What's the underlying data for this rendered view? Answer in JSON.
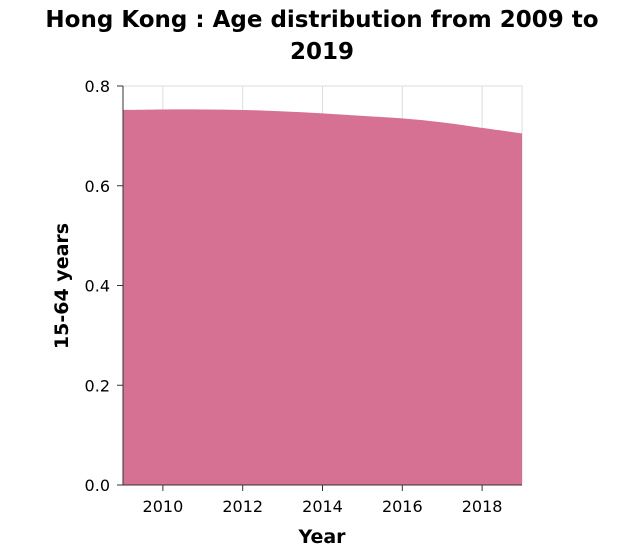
{
  "chart_data": {
    "type": "area",
    "title_lines": [
      "Hong Kong : Age distribution from 2009 to",
      "2019"
    ],
    "xlabel": "Year",
    "ylabel": "15-64 years",
    "xlim": [
      2009,
      2019
    ],
    "ylim": [
      0,
      0.8
    ],
    "x_ticks": [
      2010,
      2012,
      2014,
      2016,
      2018
    ],
    "y_ticks": [
      0.0,
      0.2,
      0.4,
      0.6,
      0.8
    ],
    "y_tick_labels": [
      "0.0",
      "0.2",
      "0.4",
      "0.6",
      "0.8"
    ],
    "grid": true,
    "series": [
      {
        "x": [
          2009,
          2010,
          2011,
          2012,
          2013,
          2014,
          2015,
          2016,
          2017,
          2018,
          2019
        ],
        "values": [
          0.752,
          0.753,
          0.753,
          0.752,
          0.749,
          0.745,
          0.74,
          0.735,
          0.727,
          0.716,
          0.705
        ],
        "color": "#d67193"
      }
    ]
  }
}
